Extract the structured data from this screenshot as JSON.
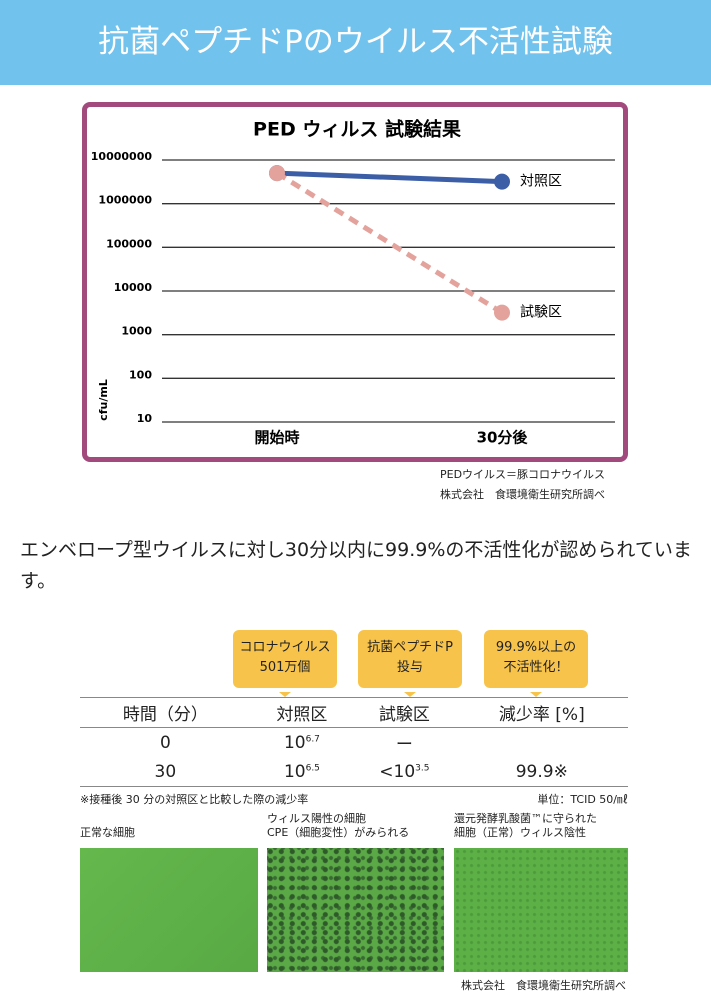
{
  "header": {
    "title": "抗菌ペプチドPのウイルス不活性試験"
  },
  "chart_data": {
    "type": "line",
    "title": "PED ウィルス 試験結果",
    "y_label": "cfu/mL",
    "categories": [
      "開始時",
      "30分後"
    ],
    "series": [
      {
        "name": "対照区",
        "color": "#3b5ea6",
        "dashed": false,
        "values": [
          5000000,
          3200000
        ]
      },
      {
        "name": "試験区",
        "color": "#e3a29c",
        "dashed": true,
        "values": [
          5000000,
          3200
        ]
      }
    ],
    "ylim": [
      10,
      10000000
    ],
    "log_scale": true,
    "grid": true,
    "yticks": [
      10,
      100,
      1000,
      10000,
      100000,
      1000000,
      10000000
    ]
  },
  "chart_notes": [
    "PEDウイルス＝豚コロナウイルス",
    "株式会社　食環境衛生研究所調べ"
  ],
  "body_text": "エンベロープ型ウイルスに対し30分以内に99.9%の不活性化が認められています。",
  "callouts": [
    [
      "コロナウイルス",
      "501万個"
    ],
    [
      "抗菌ペプチドP",
      "投与"
    ],
    [
      "99.9%以上の",
      "不活性化！"
    ]
  ],
  "table": {
    "headers": [
      "時間（分）",
      "対照区",
      "試験区",
      "減少率 [%]"
    ],
    "rows": [
      [
        {
          "text": "0"
        },
        {
          "base": "10",
          "sup": "6.7"
        },
        {
          "text": "ー"
        }
      ],
      [
        {
          "text": "30"
        },
        {
          "base": "10",
          "sup": "6.5"
        },
        {
          "base": "<10",
          "sup": "3.5"
        },
        {
          "text": "99.9※"
        }
      ]
    ]
  },
  "footnote": "※接種後 30 分の対照区と比較した際の減少率",
  "unit": "単位：TCID 50/㎖",
  "images": [
    {
      "caption": [
        "正常な細胞"
      ]
    },
    {
      "caption": [
        "ウィルス陽性の細胞",
        "CPE（細胞変性）がみられる"
      ]
    },
    {
      "caption": [
        "還元発酵乳酸菌™に守られた",
        "細胞（正常）ウィルス陰性"
      ]
    }
  ],
  "footer": "株式会社　食環境衛生研究所調べ"
}
